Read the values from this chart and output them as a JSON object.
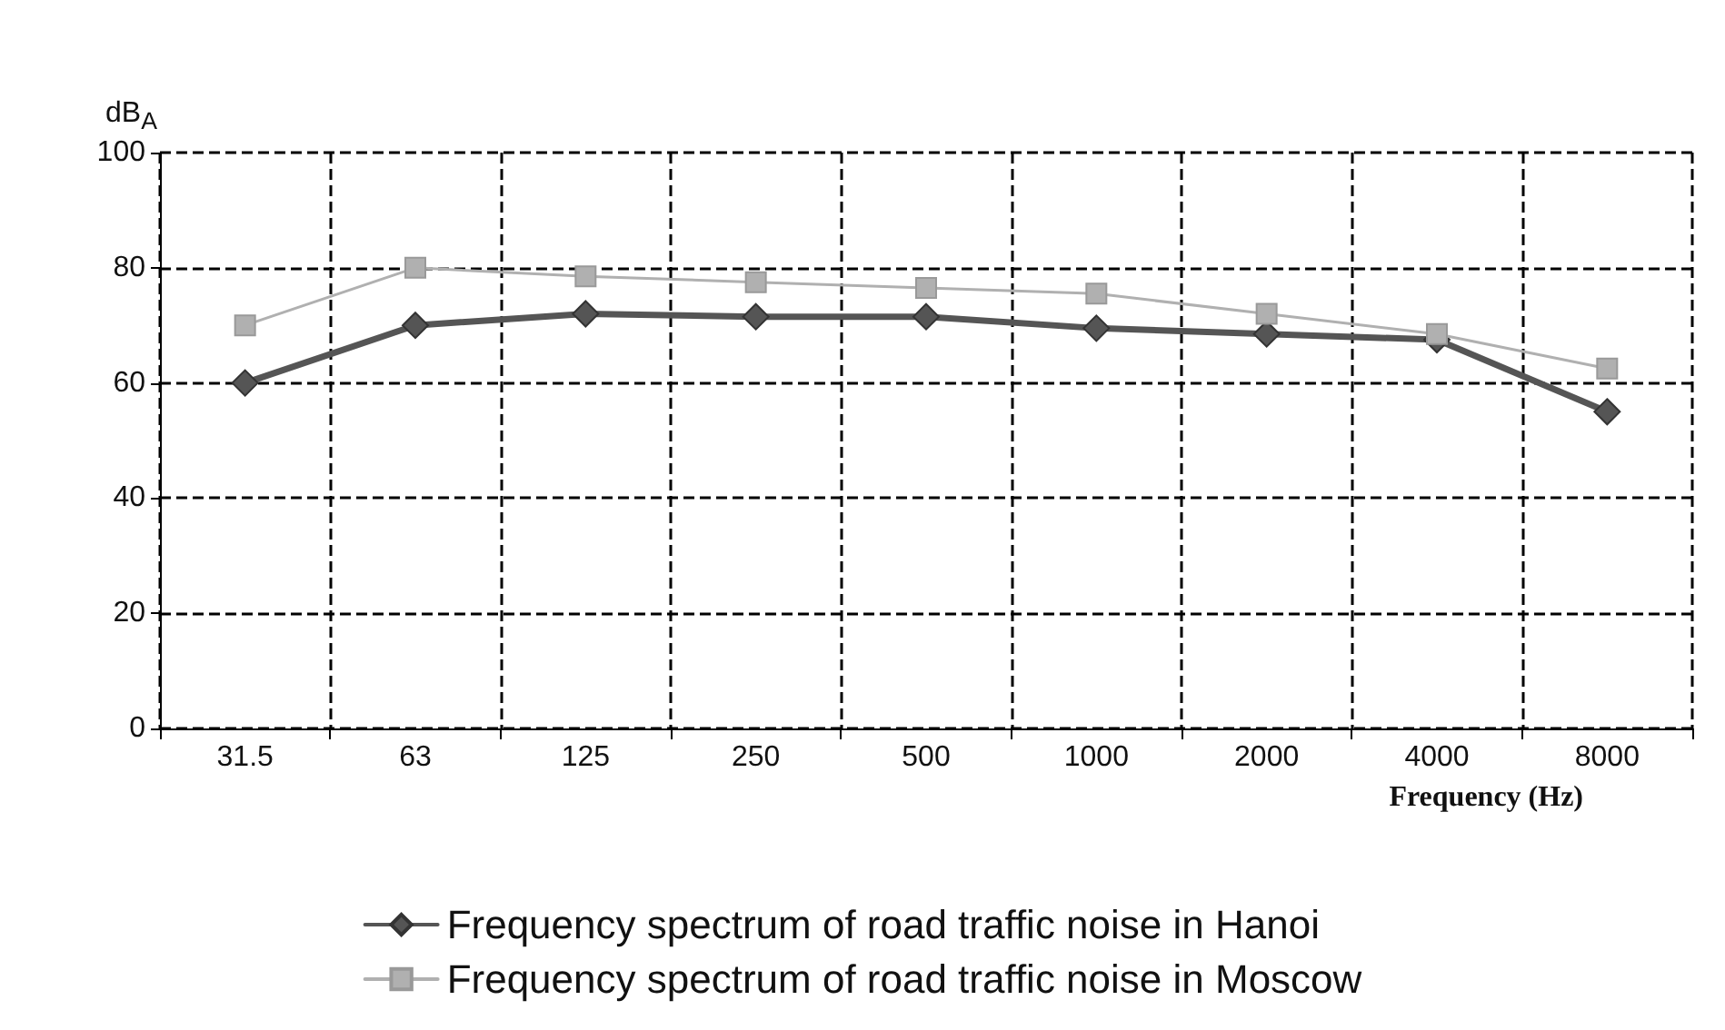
{
  "chart_data": {
    "type": "line",
    "ylabel": "dB$_{A}$",
    "xlabel": "Frequency (Hz)",
    "categories": [
      "31.5",
      "63",
      "125",
      "250",
      "500",
      "1000",
      "2000",
      "4000",
      "8000"
    ],
    "series": [
      {
        "name": "Frequency spectrum of road traffic noise in Hanoi",
        "color": "#555555",
        "marker": "diamond",
        "values": [
          60,
          70,
          72,
          71.5,
          71.5,
          69.5,
          68.5,
          67.5,
          55
        ]
      },
      {
        "name": "Frequency spectrum of road traffic noise in Moscow",
        "color": "#b0b0b0",
        "marker": "square",
        "values": [
          70,
          80,
          78.5,
          77.5,
          76.5,
          75.5,
          72,
          68.5,
          62.5
        ]
      }
    ],
    "ylim": [
      0,
      100
    ],
    "yticks": [
      0,
      20,
      40,
      60,
      80,
      100
    ],
    "grid": true,
    "legend": "bottom",
    "line_style": "solid"
  }
}
